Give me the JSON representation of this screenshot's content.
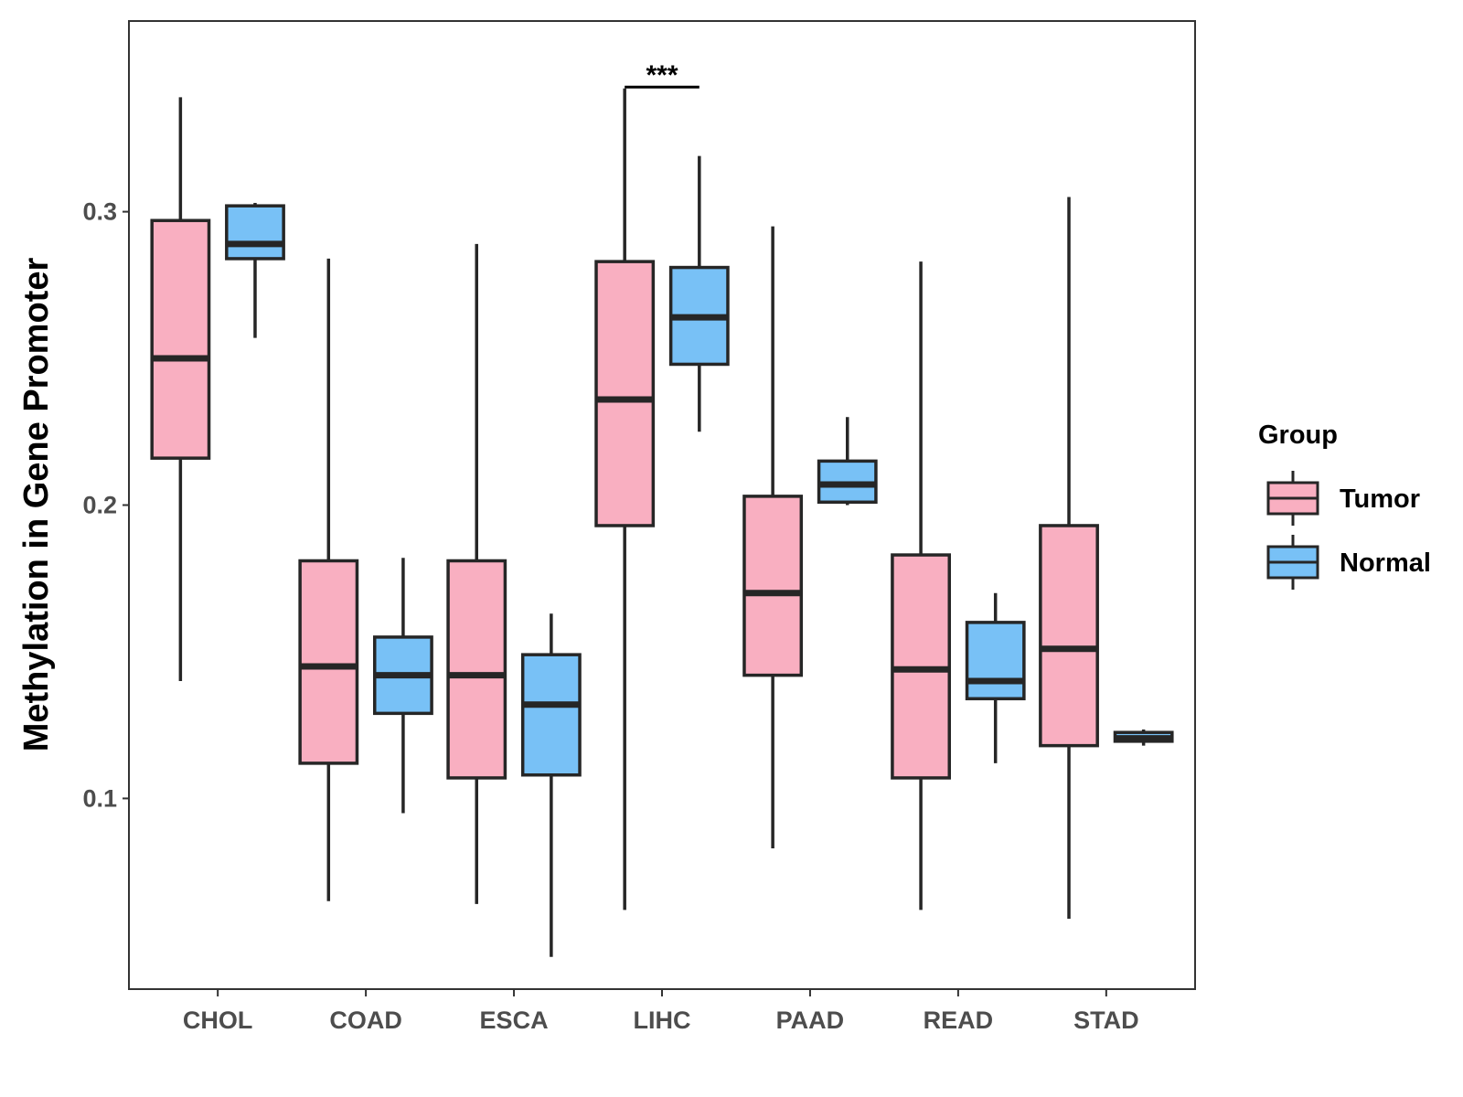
{
  "chart_data": {
    "type": "boxplot",
    "title": "",
    "xlabel": "",
    "ylabel": "Methylation in Gene Promoter",
    "ylim": [
      0.035,
      0.365
    ],
    "yticks": [
      0.1,
      0.2,
      0.3
    ],
    "ytick_labels": [
      "0.1",
      "0.2",
      "0.3"
    ],
    "grid": false,
    "legend": {
      "title": "Group",
      "position": "right",
      "entries": [
        {
          "name": "Tumor",
          "color": "#f9afc1"
        },
        {
          "name": "Normal",
          "color": "#78c1f6"
        }
      ]
    },
    "categories": [
      "CHOL",
      "COAD",
      "ESCA",
      "LIHC",
      "PAAD",
      "READ",
      "STAD"
    ],
    "series": [
      {
        "name": "Tumor",
        "color": "#f9afc1",
        "boxes": [
          {
            "min": 0.14,
            "q1": 0.216,
            "median": 0.25,
            "q3": 0.297,
            "max": 0.339
          },
          {
            "min": 0.065,
            "q1": 0.112,
            "median": 0.145,
            "q3": 0.181,
            "max": 0.284
          },
          {
            "min": 0.064,
            "q1": 0.107,
            "median": 0.142,
            "q3": 0.181,
            "max": 0.289
          },
          {
            "min": 0.062,
            "q1": 0.193,
            "median": 0.236,
            "q3": 0.283,
            "max": 0.342
          },
          {
            "min": 0.083,
            "q1": 0.142,
            "median": 0.17,
            "q3": 0.203,
            "max": 0.295
          },
          {
            "min": 0.062,
            "q1": 0.107,
            "median": 0.144,
            "q3": 0.183,
            "max": 0.283
          },
          {
            "min": 0.059,
            "q1": 0.118,
            "median": 0.151,
            "q3": 0.193,
            "max": 0.305
          }
        ]
      },
      {
        "name": "Normal",
        "color": "#78c1f6",
        "boxes": [
          {
            "min": 0.257,
            "q1": 0.284,
            "median": 0.289,
            "q3": 0.302,
            "max": 0.303
          },
          {
            "min": 0.095,
            "q1": 0.129,
            "median": 0.142,
            "q3": 0.155,
            "max": 0.182
          },
          {
            "min": 0.046,
            "q1": 0.108,
            "median": 0.132,
            "q3": 0.149,
            "max": 0.163
          },
          {
            "min": 0.225,
            "q1": 0.248,
            "median": 0.264,
            "q3": 0.281,
            "max": 0.319
          },
          {
            "min": 0.2,
            "q1": 0.201,
            "median": 0.207,
            "q3": 0.215,
            "max": 0.23
          },
          {
            "min": 0.112,
            "q1": 0.134,
            "median": 0.14,
            "q3": 0.16,
            "max": 0.17
          },
          {
            "min": 0.118,
            "q1": 0.1195,
            "median": 0.1205,
            "q3": 0.1225,
            "max": 0.1235
          }
        ]
      }
    ],
    "annotations": [
      {
        "category": "LIHC",
        "label": "***",
        "y": 0.3425
      }
    ]
  }
}
